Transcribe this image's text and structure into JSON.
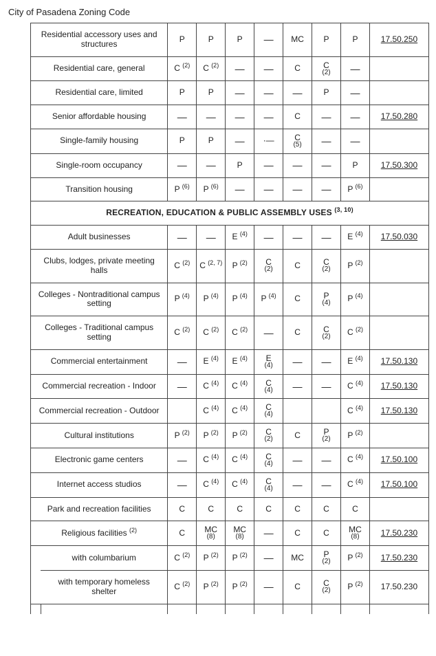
{
  "doc_title": "City of Pasadena Zoning Code",
  "section_header": {
    "text": "RECREATION, EDUCATION & PUBLIC ASSEMBLY USES",
    "sup": "(3, 10)"
  },
  "dash": "—",
  "rows_top": [
    {
      "desc": "Residential accessory uses and structures",
      "cells": [
        "P",
        "P",
        "P",
        "—",
        "MC",
        "P",
        "P"
      ],
      "ref": "17.50.250",
      "ref_underline": true
    },
    {
      "desc": "Residential care, general",
      "cells": [
        {
          "val": "C",
          "sup": "(2)"
        },
        {
          "val": "C",
          "sup": "(2)"
        },
        "—",
        "—",
        "C",
        {
          "stack_top": "C",
          "stack_bot": "(2)"
        },
        "—"
      ],
      "ref": ""
    },
    {
      "desc": "Residential care, limited",
      "cells": [
        "P",
        "P",
        "—",
        "—",
        "—",
        "P",
        "—"
      ],
      "ref": ""
    },
    {
      "desc": "Senior affordable housing",
      "cells": [
        "—",
        "—",
        "—",
        "—",
        "C",
        "—",
        "—"
      ],
      "ref": "17.50.280",
      "ref_underline": true
    },
    {
      "desc": "Single-family housing",
      "cells": [
        "P",
        "P",
        "—",
        "·—",
        {
          "stack_top": "C",
          "stack_bot": "(5)"
        },
        "—",
        "—"
      ],
      "ref": ""
    },
    {
      "desc": "Single-room occupancy",
      "cells": [
        "—",
        "—",
        "P",
        "—",
        "—",
        "—",
        "P"
      ],
      "ref": "17.50.300",
      "ref_underline": true
    },
    {
      "desc": "Transition housing",
      "cells": [
        {
          "val": "P",
          "sup": "(6)"
        },
        {
          "val": "P",
          "sup": "(6)"
        },
        "—",
        "—",
        "—",
        "—",
        {
          "val": "P",
          "sup": "(6)"
        }
      ],
      "ref": ""
    }
  ],
  "rows_bottom": [
    {
      "desc": "Adult businesses",
      "cells": [
        "—",
        "—",
        {
          "val": "E",
          "sup": "(4)"
        },
        "—",
        "—",
        "—",
        {
          "val": "E",
          "sup": "(4)"
        }
      ],
      "ref": "17.50.030",
      "ref_underline": true
    },
    {
      "desc": "Clubs, lodges, private meeting halls",
      "cells": [
        {
          "val": "C",
          "sup": "(2)"
        },
        {
          "val": "C",
          "sup": "(2, 7)"
        },
        {
          "val": "P",
          "sup": "(2)"
        },
        {
          "stack_top": "C",
          "stack_bot": "(2)"
        },
        "C",
        {
          "stack_top": "C",
          "stack_bot": "(2)"
        },
        {
          "val": "P",
          "sup": "(2)"
        }
      ],
      "ref": ""
    },
    {
      "desc": "Colleges - Nontraditional campus setting",
      "cells": [
        {
          "val": "P",
          "sup": "(4)"
        },
        {
          "val": "P",
          "sup": "(4)"
        },
        {
          "val": "P",
          "sup": "(4)"
        },
        {
          "val": "P",
          "sup": "(4)"
        },
        "C",
        {
          "stack_top": "P",
          "stack_bot": "(4)"
        },
        {
          "val": "P",
          "sup": "(4)"
        }
      ],
      "ref": ""
    },
    {
      "desc": "Colleges - Traditional campus setting",
      "cells": [
        {
          "val": "C",
          "sup": "(2)"
        },
        {
          "val": "C",
          "sup": "(2)"
        },
        {
          "val": "C",
          "sup": "(2)"
        },
        "—",
        "C",
        {
          "stack_top": "C",
          "stack_bot": "(2)"
        },
        {
          "val": "C",
          "sup": "(2)"
        }
      ],
      "ref": ""
    },
    {
      "desc": "Commercial entertainment",
      "cells": [
        "—",
        {
          "val": "E",
          "sup": "(4)"
        },
        {
          "val": "E",
          "sup": "(4)"
        },
        {
          "stack_top": "E",
          "stack_bot": "(4)"
        },
        "—",
        "—",
        {
          "val": "E",
          "sup": "(4)"
        }
      ],
      "ref": "17.50.130",
      "ref_underline": true
    },
    {
      "desc": "Commercial recreation - Indoor",
      "cells": [
        "—",
        {
          "val": "C",
          "sup": "(4)"
        },
        {
          "val": "C",
          "sup": "(4)"
        },
        {
          "stack_top": "C",
          "stack_bot": "(4)"
        },
        "—",
        "—",
        {
          "val": "C",
          "sup": "(4)"
        }
      ],
      "ref": "17.50.130",
      "ref_underline": true
    },
    {
      "desc": "Commercial recreation - Outdoor",
      "cells": [
        "",
        {
          "val": "C",
          "sup": "(4)"
        },
        {
          "val": "C",
          "sup": "(4)"
        },
        {
          "stack_top": "C",
          "stack_bot": "(4)"
        },
        "",
        "",
        {
          "val": "C",
          "sup": "(4)"
        }
      ],
      "ref": "17.50.130",
      "ref_underline": true
    },
    {
      "desc": "Cultural institutions",
      "cells": [
        {
          "val": "P",
          "sup": "(2)"
        },
        {
          "val": "P",
          "sup": "(2)"
        },
        {
          "val": "P",
          "sup": "(2)"
        },
        {
          "stack_top": "C",
          "stack_bot": "(2)"
        },
        "C",
        {
          "stack_top": "P",
          "stack_bot": "(2)"
        },
        {
          "val": "P",
          "sup": "(2)"
        }
      ],
      "ref": ""
    },
    {
      "desc": "Electronic game centers",
      "cells": [
        "—",
        {
          "val": "C",
          "sup": "(4)"
        },
        {
          "val": "C",
          "sup": "(4)"
        },
        {
          "stack_top": "C",
          "stack_bot": "(4)"
        },
        "—",
        "—",
        {
          "val": "C",
          "sup": "(4)"
        }
      ],
      "ref": "17.50.100",
      "ref_underline": true
    },
    {
      "desc": "Internet access studios",
      "cells": [
        "—",
        {
          "val": "C",
          "sup": "(4)"
        },
        {
          "val": "C",
          "sup": "(4)"
        },
        {
          "stack_top": "C",
          "stack_bot": "(4)"
        },
        "—",
        "—",
        {
          "val": "C",
          "sup": "(4)"
        }
      ],
      "ref": "17.50.100",
      "ref_underline": true
    },
    {
      "desc": "Park and recreation facilities",
      "cells": [
        "C",
        "C",
        "C",
        "C",
        "C",
        "C",
        "C"
      ],
      "ref": ""
    },
    {
      "desc_html": "Religious facilities <sup>(2)</sup>",
      "cells": [
        "C",
        {
          "stack_top": "MC",
          "stack_bot": "(8)"
        },
        {
          "stack_top": "MC",
          "stack_bot": "(8)"
        },
        "—",
        "C",
        "C",
        {
          "stack_top": "MC",
          "stack_bot": "(8)"
        }
      ],
      "ref": "17.50.230",
      "ref_underline": true
    },
    {
      "indented": true,
      "desc": "with columbarium",
      "cells": [
        {
          "val": "C",
          "sup": "(2)"
        },
        {
          "val": "P",
          "sup": "(2)"
        },
        {
          "val": "P",
          "sup": "(2)"
        },
        "—",
        "MC",
        {
          "stack_top": "P",
          "stack_bot": "(2)"
        },
        {
          "val": "P",
          "sup": "(2)"
        }
      ],
      "ref": "17.50.230",
      "ref_underline": true
    },
    {
      "indented": true,
      "desc": "with temporary homeless shelter",
      "cells": [
        {
          "val": "C",
          "sup": "(2)"
        },
        {
          "val": "P",
          "sup": "(2)"
        },
        {
          "val": "P",
          "sup": "(2)"
        },
        "—",
        "C",
        {
          "stack_top": "C",
          "stack_bot": "(2)"
        },
        {
          "val": "P",
          "sup": "(2)"
        }
      ],
      "ref": "17.50.230",
      "ref_underline": false
    }
  ]
}
